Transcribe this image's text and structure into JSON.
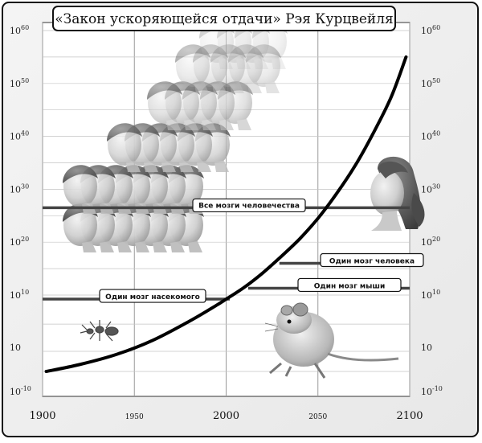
{
  "chart_data": {
    "type": "line",
    "title": "«Закон ускоряющейся отдачи» Рэя Курцвейля",
    "xlabel": "",
    "ylabel": "",
    "x_ticks": [
      {
        "value": 1900,
        "label": "1900"
      },
      {
        "value": 1950,
        "label": "1950"
      },
      {
        "value": 2000,
        "label": "2000"
      },
      {
        "value": 2050,
        "label": "2050"
      },
      {
        "value": 2100,
        "label": "2100"
      }
    ],
    "y_ticks": [
      {
        "value": -10,
        "base": "10",
        "exp": "-10"
      },
      {
        "value": 1,
        "base": "10",
        "exp": ""
      },
      {
        "value": 10,
        "base": "10",
        "exp": "10"
      },
      {
        "value": 20,
        "base": "10",
        "exp": "20"
      },
      {
        "value": 30,
        "base": "10",
        "exp": "30"
      },
      {
        "value": 40,
        "base": "10",
        "exp": "40"
      },
      {
        "value": 50,
        "base": "10",
        "exp": "50"
      },
      {
        "value": 60,
        "base": "10",
        "exp": "60"
      }
    ],
    "xlim": [
      1900,
      2100
    ],
    "ylim": [
      -10,
      62
    ],
    "scale": "log",
    "grid": true,
    "series": [
      {
        "x": [
          1902,
          1920,
          1940,
          1960,
          1980,
          1995,
          2000,
          2010,
          2020,
          2030,
          2040,
          2050,
          2060,
          2070,
          2080,
          2090,
          2098
        ],
        "y": [
          -5,
          -3.3,
          -0.8,
          2.2,
          5.5,
          8.3,
          9.3,
          11.5,
          14.2,
          17.3,
          20.6,
          24.5,
          29.1,
          34.3,
          40.5,
          47.5,
          55
        ]
      }
    ],
    "reference_lines": [
      {
        "label": "Все мозги человечества",
        "y": 26.5,
        "x_start": 1900,
        "x_end": 2100
      },
      {
        "label": "Один мозг человека",
        "y": 16,
        "x_start": 2029,
        "x_end": 2100
      },
      {
        "label": "Один мозг мыши",
        "y": 11.3,
        "x_start": 2012,
        "x_end": 2100
      },
      {
        "label": "Один мозг насекомого",
        "y": 9.3,
        "x_start": 1900,
        "x_end": 2002
      }
    ]
  }
}
